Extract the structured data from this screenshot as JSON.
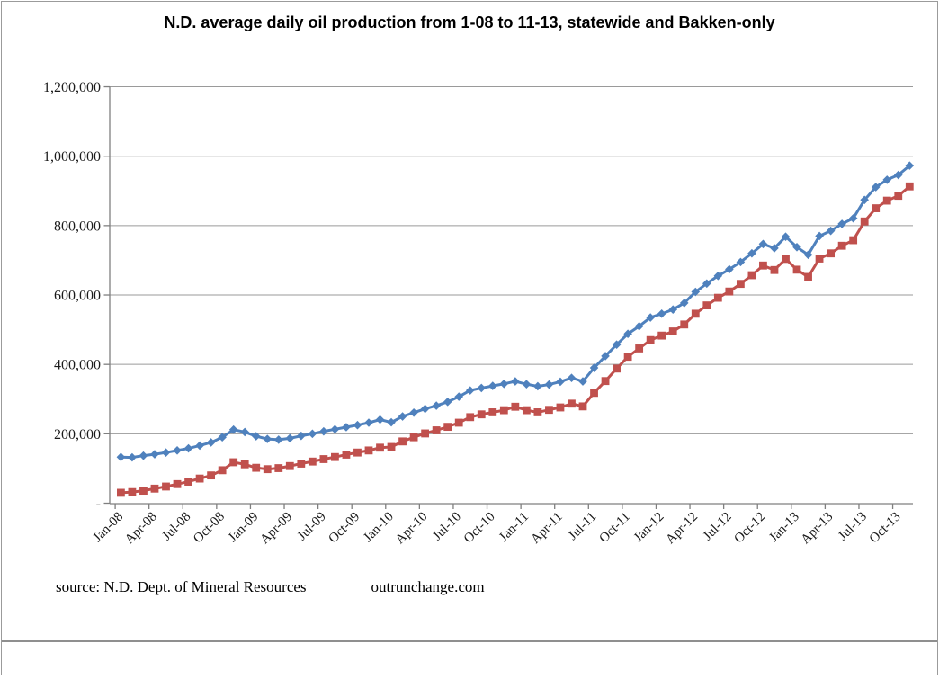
{
  "page": {
    "title": "N.D. average daily oil production from 1-08 to 11-13, statewide and Bakken-only",
    "source_note": "source: N.D. Dept. of Mineral Resources",
    "site": "outrunchange.com"
  },
  "colors": {
    "statewide_line": "#4F81BD",
    "bakken_line": "#C0504D",
    "gridline": "#9a9a9a",
    "axis": "#7f7f7f",
    "background": "#ffffff",
    "frame": "#9b9b9b"
  },
  "chart_data": {
    "type": "line",
    "title": "N.D. average daily oil production from 1-08 to 11-13, statewide and Bakken-only",
    "xlabel": "",
    "ylabel": "",
    "grid": true,
    "legend": "none",
    "y_axis": {
      "min": 0,
      "max": 1200000,
      "step": 200000,
      "tick_labels": [
        "-",
        "200,000",
        "400,000",
        "600,000",
        "800,000",
        "1,000,000",
        "1,200,000"
      ]
    },
    "x_tick_labels": [
      "Jan-08",
      "Apr-08",
      "Jul-08",
      "Oct-08",
      "Jan-09",
      "Apr-09",
      "Jul-09",
      "Oct-09",
      "Jan-10",
      "Apr-10",
      "Jul-10",
      "Oct-10",
      "Jan-11",
      "Apr-11",
      "Jul-11",
      "Oct-11",
      "Jan-12",
      "Apr-12",
      "Jul-12",
      "Oct-12",
      "Jan-13",
      "Apr-13",
      "Jul-13",
      "Oct-13"
    ],
    "x": [
      "Jan-08",
      "Feb-08",
      "Mar-08",
      "Apr-08",
      "May-08",
      "Jun-08",
      "Jul-08",
      "Aug-08",
      "Sep-08",
      "Oct-08",
      "Nov-08",
      "Dec-08",
      "Jan-09",
      "Feb-09",
      "Mar-09",
      "Apr-09",
      "May-09",
      "Jun-09",
      "Jul-09",
      "Aug-09",
      "Sep-09",
      "Oct-09",
      "Nov-09",
      "Dec-09",
      "Jan-10",
      "Feb-10",
      "Mar-10",
      "Apr-10",
      "May-10",
      "Jun-10",
      "Jul-10",
      "Aug-10",
      "Sep-10",
      "Oct-10",
      "Nov-10",
      "Dec-10",
      "Jan-11",
      "Feb-11",
      "Mar-11",
      "Apr-11",
      "May-11",
      "Jun-11",
      "Jul-11",
      "Aug-11",
      "Sep-11",
      "Oct-11",
      "Nov-11",
      "Dec-11",
      "Jan-12",
      "Feb-12",
      "Mar-12",
      "Apr-12",
      "May-12",
      "Jun-12",
      "Jul-12",
      "Aug-12",
      "Sep-12",
      "Oct-12",
      "Nov-12",
      "Dec-12",
      "Jan-13",
      "Feb-13",
      "Mar-13",
      "Apr-13",
      "May-13",
      "Jun-13",
      "Jul-13",
      "Aug-13",
      "Sep-13",
      "Oct-13",
      "Nov-13"
    ],
    "series": [
      {
        "name": "statewide",
        "color": "#4F81BD",
        "marker": "diamond",
        "values": [
          133000,
          132000,
          137000,
          141000,
          146000,
          152000,
          158000,
          166000,
          175000,
          190000,
          212000,
          205000,
          193000,
          185000,
          183000,
          187000,
          194000,
          200000,
          207000,
          213000,
          219000,
          225000,
          232000,
          241000,
          233000,
          250000,
          261000,
          272000,
          281000,
          292000,
          307000,
          325000,
          332000,
          338000,
          344000,
          351000,
          343000,
          337000,
          342000,
          350000,
          361000,
          351000,
          390000,
          424000,
          457000,
          488000,
          510000,
          535000,
          546000,
          558000,
          577000,
          609000,
          633000,
          655000,
          674000,
          695000,
          720000,
          747000,
          735000,
          768000,
          738000,
          716000,
          770000,
          785000,
          805000,
          821000,
          874000,
          911000,
          932000,
          946000,
          973000
        ]
      },
      {
        "name": "Bakken-only",
        "color": "#C0504D",
        "marker": "square",
        "values": [
          30000,
          32000,
          36000,
          42000,
          48000,
          55000,
          62000,
          71000,
          80000,
          95000,
          118000,
          112000,
          102000,
          98000,
          101000,
          107000,
          114000,
          120000,
          127000,
          133000,
          140000,
          146000,
          152000,
          160000,
          162000,
          178000,
          190000,
          201000,
          210000,
          220000,
          232000,
          248000,
          256000,
          262000,
          268000,
          278000,
          268000,
          262000,
          269000,
          276000,
          287000,
          279000,
          318000,
          352000,
          388000,
          422000,
          446000,
          470000,
          483000,
          495000,
          515000,
          546000,
          570000,
          592000,
          610000,
          632000,
          657000,
          685000,
          672000,
          704000,
          673000,
          652000,
          705000,
          720000,
          742000,
          758000,
          812000,
          850000,
          872000,
          886000,
          913000
        ]
      }
    ]
  }
}
